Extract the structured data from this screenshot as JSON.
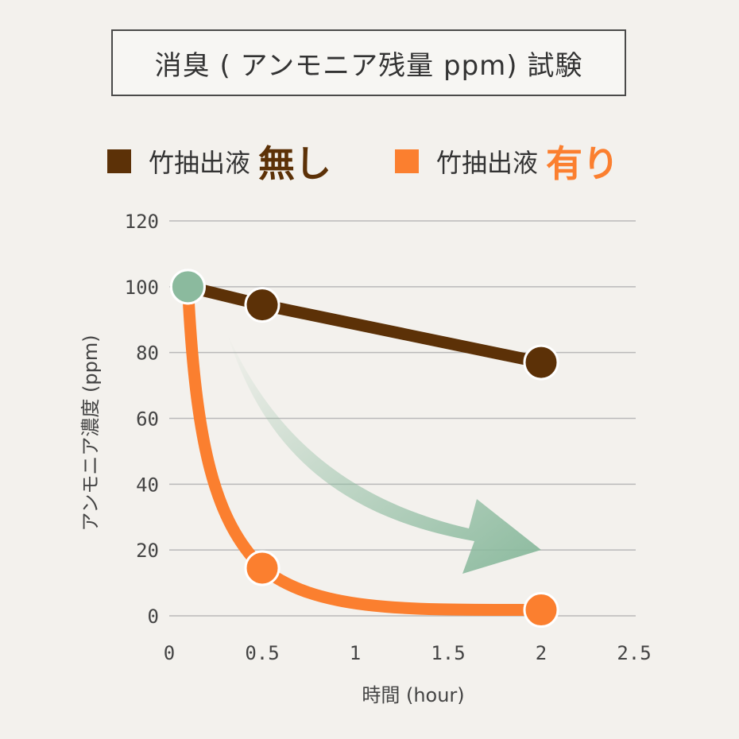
{
  "chart_data": {
    "type": "line",
    "title": "消臭 ( アンモニア残量 ppm) 試験",
    "xlabel": "時間 (hour)",
    "ylabel": "アンモニア濃度 (ppm)",
    "xlim": [
      0,
      2.5
    ],
    "ylim": [
      0,
      120
    ],
    "x_ticks": [
      "0",
      "0.5",
      "1",
      "1.5",
      "2",
      "2.5"
    ],
    "y_ticks": [
      "0",
      "20",
      "40",
      "60",
      "80",
      "100",
      "120"
    ],
    "grid": true,
    "legend_position": "top",
    "series": [
      {
        "name": "竹抽出液",
        "name_emphasis": "無し",
        "color": "#5c3107",
        "points": [
          [
            0.1,
            100
          ],
          [
            0.5,
            94.5
          ],
          [
            2,
            77
          ]
        ],
        "line_style": "straight"
      },
      {
        "name": "竹抽出液",
        "name_emphasis": "有り",
        "color": "#fb7f2f",
        "points": [
          [
            0.1,
            100
          ],
          [
            0.5,
            14.5
          ],
          [
            2,
            1.8
          ]
        ],
        "line_style": "smooth"
      }
    ],
    "start_marker_color": "#8bba9e",
    "annotation_arrow_color": "#8bba9e"
  }
}
